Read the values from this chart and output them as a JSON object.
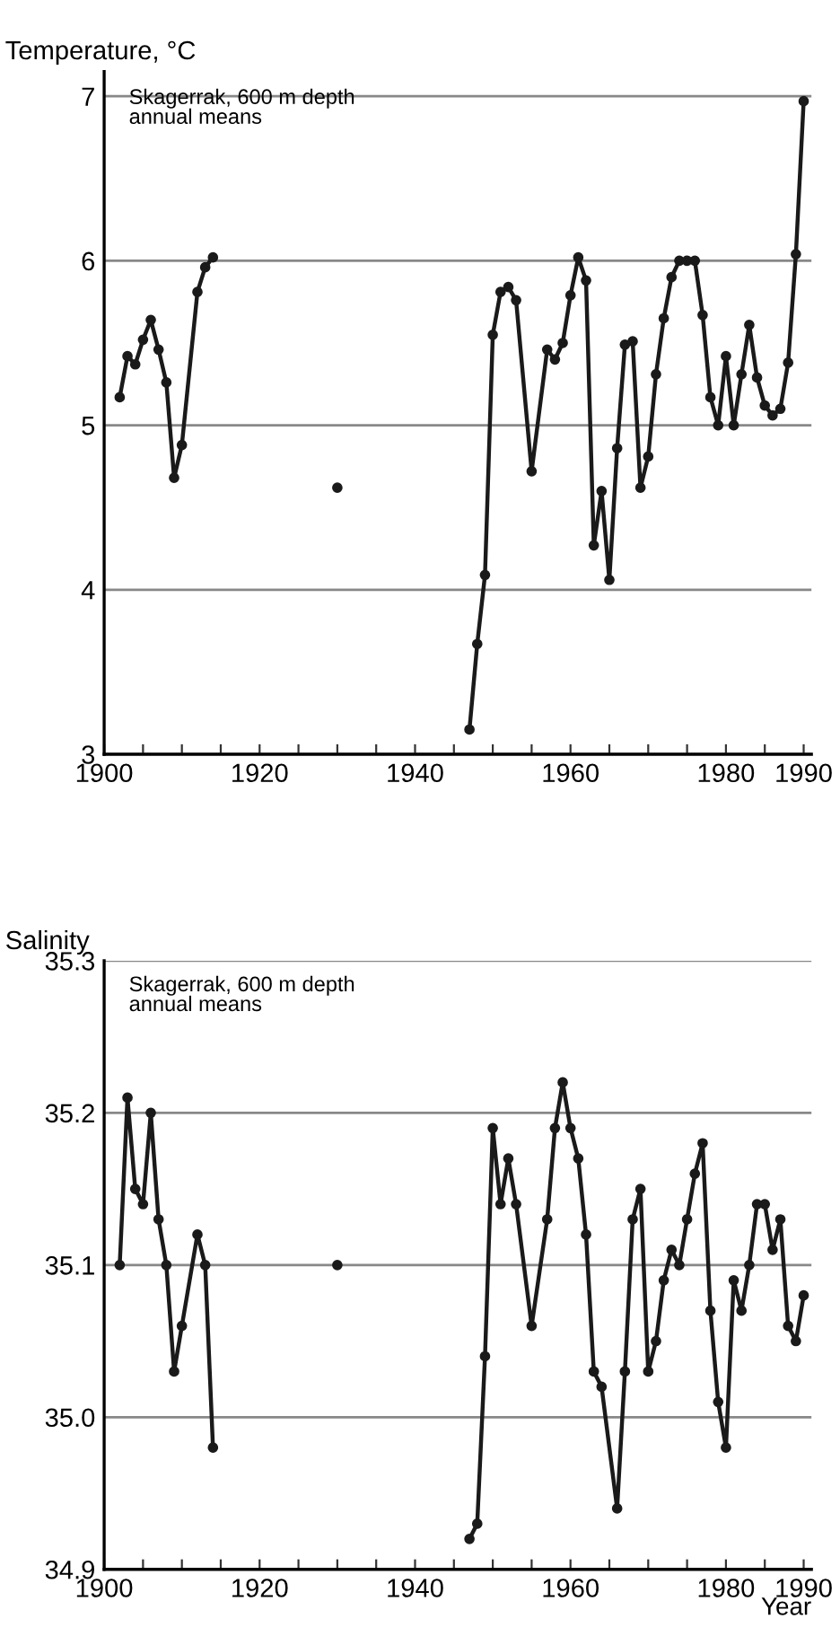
{
  "chart_data": [
    {
      "type": "line",
      "ylabel": "Temperature, °C",
      "annotations": [
        "Skagerrak, 600 m depth\nannual means"
      ],
      "x": [
        1902,
        1903,
        1904,
        1905,
        1906,
        1907,
        1908,
        1909,
        1910,
        1912,
        1913,
        1914,
        1920,
        1930,
        1940,
        1947,
        1948,
        1949,
        1950,
        1951,
        1952,
        1953,
        1955,
        1957,
        1958,
        1959,
        1960,
        1961,
        1962,
        1963,
        1964,
        1965,
        1966,
        1967,
        1968,
        1969,
        1970,
        1971,
        1972,
        1973,
        1974,
        1975,
        1976,
        1977,
        1978,
        1979,
        1980,
        1981,
        1982,
        1983,
        1984,
        1985,
        1986,
        1987,
        1988,
        1989,
        1990
      ],
      "series": [
        {
          "color": "#1a1a1a",
          "values": [
            5.17,
            5.42,
            5.37,
            5.52,
            5.64,
            5.46,
            5.26,
            4.68,
            4.88,
            5.81,
            5.96,
            6.02,
            null,
            4.62,
            null,
            3.15,
            3.67,
            4.09,
            5.55,
            5.81,
            5.84,
            5.76,
            4.72,
            5.46,
            5.4,
            5.5,
            5.79,
            6.02,
            5.88,
            4.27,
            4.6,
            4.06,
            4.86,
            5.49,
            5.51,
            4.62,
            4.81,
            5.31,
            5.65,
            5.9,
            6.0,
            6.0,
            6.0,
            5.67,
            5.17,
            5.0,
            5.42,
            5.0,
            5.31,
            5.61,
            5.29,
            5.12,
            5.06,
            5.1,
            5.38,
            6.04,
            6.97
          ]
        }
      ],
      "xlim": [
        1900,
        1991
      ],
      "ylim": [
        3,
        7.15
      ],
      "xticks": [
        1900,
        {
          "value": 1905,
          "label": null
        },
        {
          "value": 1910,
          "label": null
        },
        {
          "value": 1915,
          "label": null
        },
        1920,
        {
          "value": 1925,
          "label": null
        },
        {
          "value": 1930,
          "label": null
        },
        {
          "value": 1935,
          "label": null
        },
        1940,
        {
          "value": 1945,
          "label": null
        },
        {
          "value": 1950,
          "label": null
        },
        {
          "value": 1955,
          "label": null
        },
        1960,
        {
          "value": 1965,
          "label": null
        },
        {
          "value": 1970,
          "label": null
        },
        {
          "value": 1975,
          "label": null
        },
        1980,
        {
          "value": 1985,
          "label": null
        },
        1990
      ],
      "yticks": [
        3,
        4,
        5,
        6,
        7
      ],
      "grid": "y",
      "marker": "circle",
      "line_style": "solid"
    },
    {
      "type": "line",
      "ylabel": "Salinity",
      "xlabel": "Year",
      "annotations": [
        "Skagerrak, 600 m depth\nannual means"
      ],
      "x": [
        1902,
        1903,
        1904,
        1905,
        1906,
        1907,
        1908,
        1909,
        1910,
        1912,
        1913,
        1914,
        1920,
        1930,
        1940,
        1947,
        1948,
        1949,
        1950,
        1951,
        1952,
        1953,
        1955,
        1957,
        1958,
        1959,
        1960,
        1961,
        1962,
        1963,
        1964,
        1966,
        1967,
        1968,
        1969,
        1970,
        1971,
        1972,
        1973,
        1974,
        1975,
        1976,
        1977,
        1978,
        1979,
        1980,
        1981,
        1982,
        1983,
        1984,
        1985,
        1986,
        1987,
        1988,
        1989,
        1990
      ],
      "series": [
        {
          "color": "#1a1a1a",
          "values": [
            35.1,
            35.21,
            35.15,
            35.14,
            35.2,
            35.13,
            35.1,
            35.03,
            35.06,
            35.12,
            35.1,
            34.98,
            null,
            35.1,
            null,
            34.92,
            34.93,
            35.04,
            35.19,
            35.14,
            35.17,
            35.14,
            35.06,
            35.13,
            35.19,
            35.22,
            35.19,
            35.17,
            35.12,
            35.03,
            35.02,
            34.94,
            35.03,
            35.13,
            35.15,
            35.03,
            35.05,
            35.09,
            35.11,
            35.1,
            35.13,
            35.16,
            35.18,
            35.07,
            35.01,
            34.98,
            35.09,
            35.07,
            35.1,
            35.14,
            35.14,
            35.11,
            35.13,
            35.06,
            35.05,
            35.08
          ]
        }
      ],
      "xlim": [
        1900,
        1991
      ],
      "ylim": [
        34.9,
        35.3
      ],
      "xticks": [
        1900,
        {
          "value": 1905,
          "label": null
        },
        {
          "value": 1910,
          "label": null
        },
        {
          "value": 1915,
          "label": null
        },
        1920,
        {
          "value": 1925,
          "label": null
        },
        {
          "value": 1930,
          "label": null
        },
        {
          "value": 1935,
          "label": null
        },
        1940,
        {
          "value": 1945,
          "label": null
        },
        {
          "value": 1950,
          "label": null
        },
        {
          "value": 1955,
          "label": null
        },
        1960,
        {
          "value": 1965,
          "label": null
        },
        {
          "value": 1970,
          "label": null
        },
        {
          "value": 1975,
          "label": null
        },
        1980,
        {
          "value": 1985,
          "label": null
        },
        1990
      ],
      "yticks": [
        {
          "value": 34.9,
          "label": "34.9"
        },
        {
          "value": 35.0,
          "label": "35.0"
        },
        {
          "value": 35.1,
          "label": "35.1"
        },
        {
          "value": 35.2,
          "label": "35.2"
        },
        {
          "value": 35.3,
          "label": "35.3"
        }
      ],
      "grid": "y",
      "marker": "circle",
      "line_style": "solid"
    }
  ]
}
